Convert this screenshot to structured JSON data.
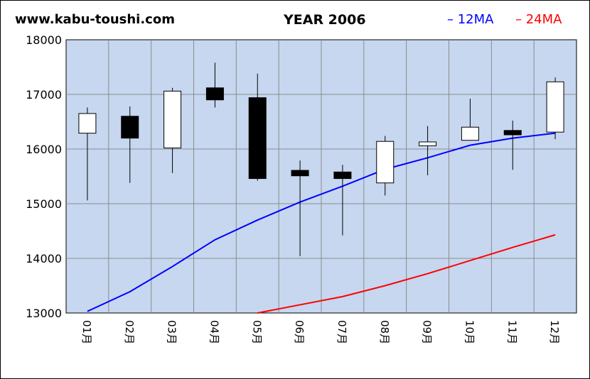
{
  "header": {
    "site": "www.kabu-toushi.com",
    "title": "YEAR 2006"
  },
  "legend": {
    "ma12_label": "12MA",
    "ma24_label": "24MA"
  },
  "colors": {
    "plot_bg": "#c6d7ef",
    "grid": "#8c8c8c",
    "ma12": "#0000ff",
    "ma24": "#ff0000",
    "candle_up_fill": "#ffffff",
    "candle_down_fill": "#000000"
  },
  "chart_data": {
    "type": "candlestick",
    "title": "YEAR 2006",
    "categories": [
      "01月",
      "02月",
      "03月",
      "04月",
      "05月",
      "06月",
      "07月",
      "08月",
      "09月",
      "10月",
      "11月",
      "12月"
    ],
    "ylim": [
      13000,
      18000
    ],
    "yticks": [
      13000,
      14000,
      15000,
      16000,
      17000,
      18000
    ],
    "grid": true,
    "legend_position": "top-right",
    "candles": [
      {
        "open": 16290,
        "high": 16760,
        "low": 15060,
        "close": 16650
      },
      {
        "open": 16600,
        "high": 16780,
        "low": 15380,
        "close": 16200
      },
      {
        "open": 16020,
        "high": 17120,
        "low": 15560,
        "close": 17060
      },
      {
        "open": 17120,
        "high": 17580,
        "low": 16760,
        "close": 16900
      },
      {
        "open": 16940,
        "high": 17380,
        "low": 15420,
        "close": 15460
      },
      {
        "open": 15610,
        "high": 15790,
        "low": 14040,
        "close": 15510
      },
      {
        "open": 15580,
        "high": 15710,
        "low": 14420,
        "close": 15460
      },
      {
        "open": 15380,
        "high": 16240,
        "low": 15150,
        "close": 16140
      },
      {
        "open": 16060,
        "high": 16420,
        "low": 15520,
        "close": 16130
      },
      {
        "open": 16160,
        "high": 16920,
        "low": 16160,
        "close": 16400
      },
      {
        "open": 16340,
        "high": 16520,
        "low": 15620,
        "close": 16260
      },
      {
        "open": 16310,
        "high": 17310,
        "low": 16180,
        "close": 17230
      }
    ],
    "series": [
      {
        "name": "12MA",
        "color": "#0000ff",
        "values": [
          13030,
          13390,
          13850,
          14340,
          14700,
          15030,
          15320,
          15630,
          15840,
          16070,
          16200,
          16290
        ]
      },
      {
        "name": "24MA",
        "color": "#ff0000",
        "values": [
          null,
          null,
          null,
          null,
          13000,
          13150,
          13300,
          13500,
          13720,
          13960,
          14200,
          14430
        ]
      }
    ]
  }
}
